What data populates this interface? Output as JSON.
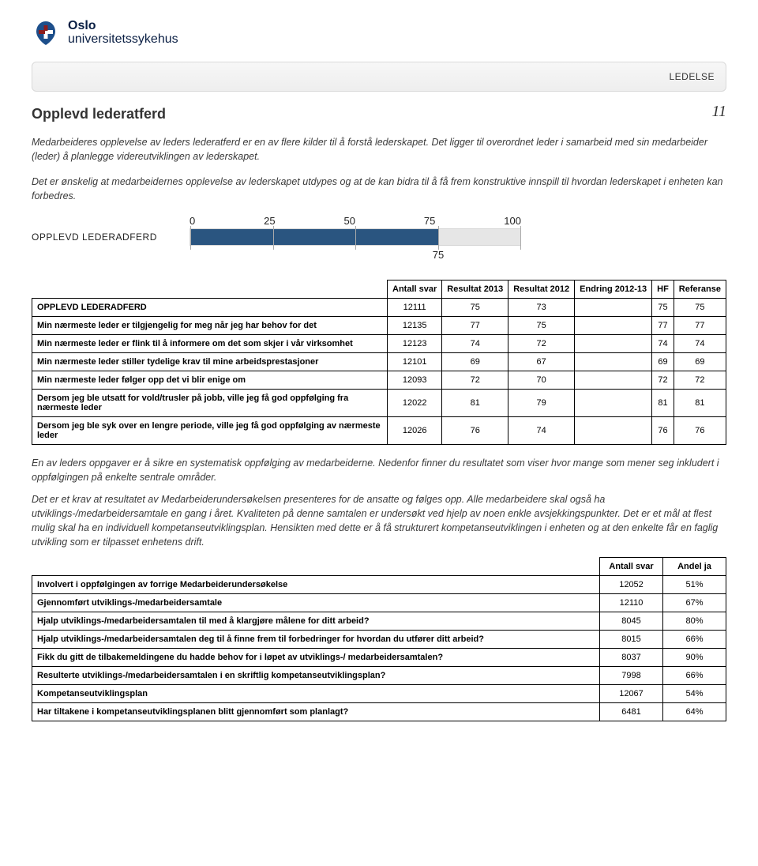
{
  "logo": {
    "line1": "Oslo",
    "line2": "universitetssykehus"
  },
  "banner": {
    "label": "LEDELSE"
  },
  "page_number": "11",
  "title": "Opplevd lederatferd",
  "intro_paragraphs": [
    "Medarbeideres opplevelse av leders lederatferd er en av flere kilder til å forstå lederskapet. Det ligger til overordnet leder i samarbeid med sin medarbeider (leder) å planlegge videreutviklingen av lederskapet.",
    "Det er ønskelig at medarbeidernes opplevelse av lederskapet utdypes og at de kan bidra til å få frem konstruktive innspill til hvordan lederskapet i enheten kan forbedres."
  ],
  "gauge": {
    "label": "OPPLEVD LEDERADFERD",
    "value": 75,
    "ticks": [
      0,
      25,
      50,
      75,
      100
    ],
    "fill_color": "#2a5580",
    "track_color": "#e6e6e6"
  },
  "table1": {
    "headers": [
      "Antall svar",
      "Resultat 2013",
      "Resultat 2012",
      "Endring 2012-13",
      "HF",
      "Referanse"
    ],
    "rows": [
      {
        "label": "OPPLEVD LEDERADFERD",
        "cells": [
          "12111",
          "75",
          "73",
          "",
          "75",
          "75"
        ]
      },
      {
        "label": "Min nærmeste leder er tilgjengelig for meg når jeg har behov for det",
        "cells": [
          "12135",
          "77",
          "75",
          "",
          "77",
          "77"
        ]
      },
      {
        "label": "Min nærmeste leder er flink til å informere om det som skjer i vår virksomhet",
        "cells": [
          "12123",
          "74",
          "72",
          "",
          "74",
          "74"
        ]
      },
      {
        "label": "Min nærmeste leder stiller tydelige krav til mine arbeidsprestasjoner",
        "cells": [
          "12101",
          "69",
          "67",
          "",
          "69",
          "69"
        ]
      },
      {
        "label": "Min nærmeste leder følger opp det vi blir enige om",
        "cells": [
          "12093",
          "72",
          "70",
          "",
          "72",
          "72"
        ]
      },
      {
        "label": "Dersom jeg ble utsatt for vold/trusler på jobb, ville jeg få god oppfølging fra nærmeste leder",
        "cells": [
          "12022",
          "81",
          "79",
          "",
          "81",
          "81"
        ]
      },
      {
        "label": "Dersom jeg ble syk over en lengre periode, ville jeg få god oppfølging av nærmeste leder",
        "cells": [
          "12026",
          "76",
          "74",
          "",
          "76",
          "76"
        ]
      }
    ]
  },
  "body_paragraphs": [
    "En av leders oppgaver er å sikre en systematisk oppfølging av medarbeiderne. Nedenfor finner du resultatet som viser hvor mange som mener seg inkludert i oppfølgingen på enkelte sentrale områder.",
    "Det er et krav at resultatet av Medarbeiderundersøkelsen presenteres for de ansatte og følges opp. Alle medarbeidere skal også ha utviklings-/medarbeidersamtale en gang i året. Kvaliteten på denne samtalen er undersøkt ved hjelp av noen enkle avsjekkingspunkter. Det er et mål at flest mulig skal ha en individuell kompetanseutviklingsplan. Hensikten med dette er å få strukturert kompetanseutviklingen i enheten og at den enkelte får en faglig utvikling som er tilpasset enhetens drift."
  ],
  "table2": {
    "headers": [
      "Antall svar",
      "Andel ja"
    ],
    "rows": [
      {
        "label": "Involvert i oppfølgingen av forrige Medarbeiderundersøkelse",
        "cells": [
          "12052",
          "51%"
        ]
      },
      {
        "label": "Gjennomført utviklings-/medarbeidersamtale",
        "cells": [
          "12110",
          "67%"
        ]
      },
      {
        "label": "Hjalp utviklings-/medarbeidersamtalen til med å klargjøre målene for ditt arbeid?",
        "cells": [
          "8045",
          "80%"
        ]
      },
      {
        "label": "Hjalp utviklings-/medarbeidersamtalen deg til å finne frem til forbedringer for hvordan du utfører ditt arbeid?",
        "cells": [
          "8015",
          "66%"
        ]
      },
      {
        "label": "Fikk du gitt de tilbakemeldingene du hadde behov for i løpet av utviklings-/ medarbeidersamtalen?",
        "cells": [
          "8037",
          "90%"
        ]
      },
      {
        "label": "Resulterte utviklings-/medarbeidersamtalen i en skriftlig kompetanseutviklingsplan?",
        "cells": [
          "7998",
          "66%"
        ]
      },
      {
        "label": "Kompetanseutviklingsplan",
        "cells": [
          "12067",
          "54%"
        ]
      },
      {
        "label": "Har tiltakene i kompetanseutviklingsplanen blitt gjennomført som planlagt?",
        "cells": [
          "6481",
          "64%"
        ]
      }
    ]
  }
}
